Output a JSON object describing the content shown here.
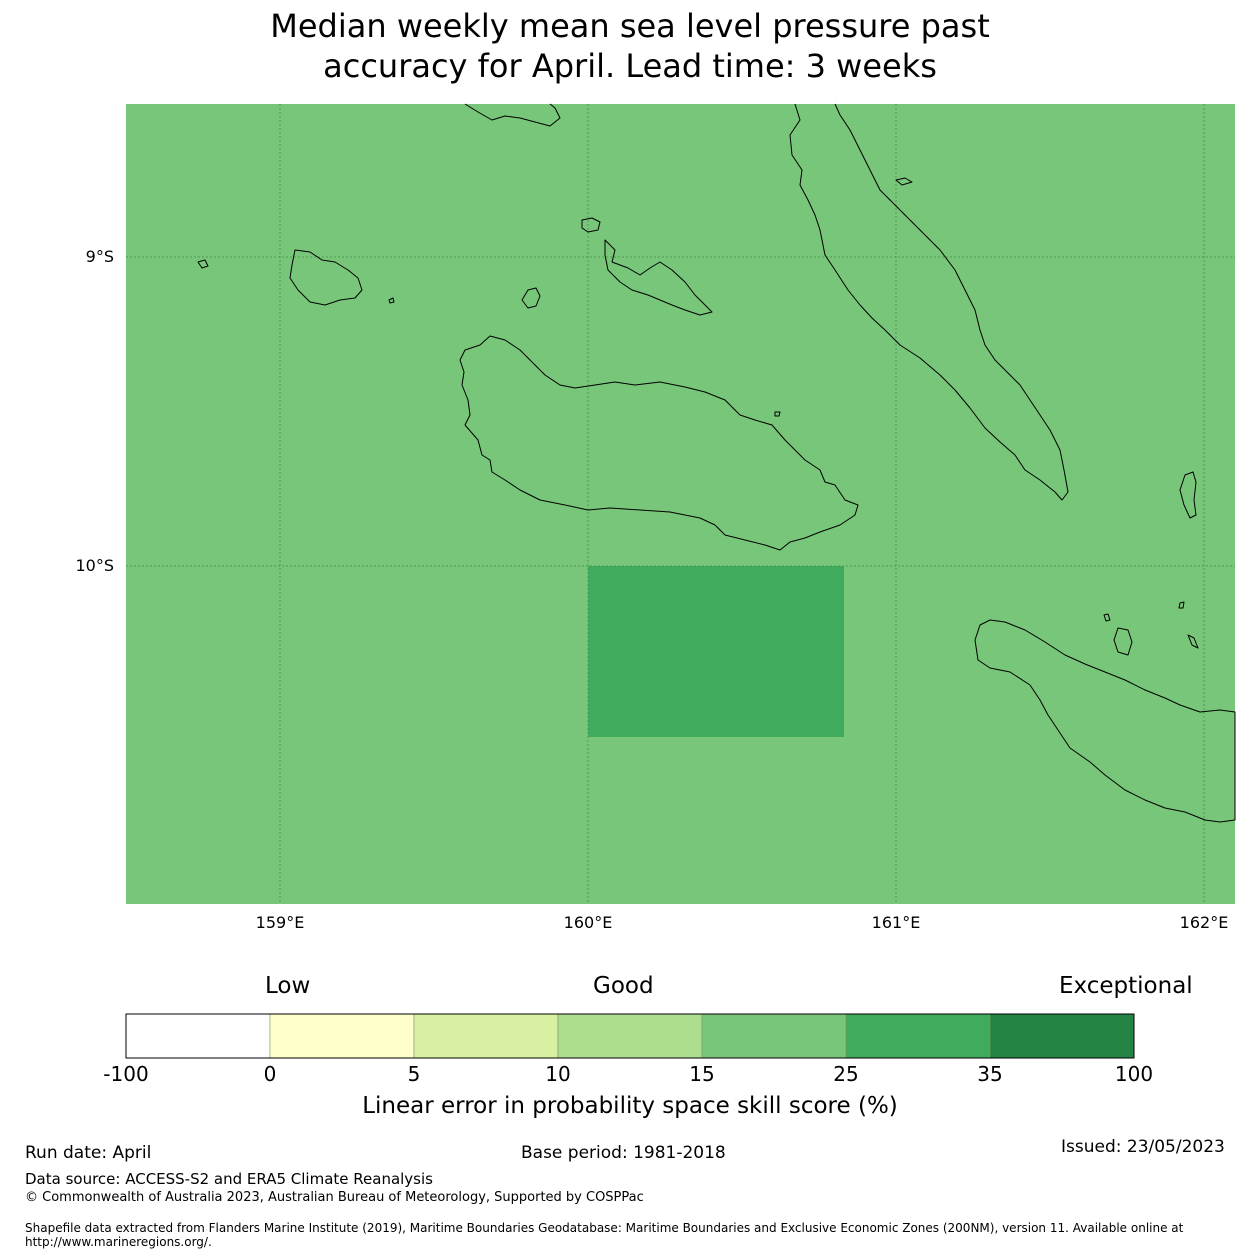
{
  "title_line1": "Median weekly mean sea level pressure past",
  "title_line2": "accuracy for April. Lead time: 3 weeks",
  "map": {
    "background_color": "#78c679",
    "highlight_color": "#41ab5d",
    "lat_labels": [
      "9°S",
      "10°S"
    ],
    "lon_labels": [
      "159°E",
      "160°E",
      "161°E",
      "162°E"
    ],
    "lon_range": [
      158.5,
      162.1
    ],
    "lat_range": [
      -8.5,
      -11.1
    ],
    "highlight_cell": {
      "lon_min": 160.0,
      "lon_max": 160.83,
      "lat_min": -10.56,
      "lat_max": -10.0,
      "category": "25–35"
    }
  },
  "colorbar": {
    "category_low": "Low",
    "category_good": "Good",
    "category_exceptional": "Exceptional",
    "ticks": [
      "-100",
      "0",
      "5",
      "10",
      "15",
      "25",
      "35",
      "100"
    ],
    "colors": [
      "#ffffff",
      "#ffffcc",
      "#d9f0a3",
      "#addd8e",
      "#78c679",
      "#41ab5d",
      "#238443"
    ],
    "label": "Linear error in probability space skill score (%)"
  },
  "footer": {
    "run_date": "Run date: April",
    "base_period": "Base period: 1981-2018",
    "issued": "Issued: 23/05/2023",
    "data_source": "Data source: ACCESS-S2 and ERA5 Climate Reanalysis",
    "copyright": "© Commonwealth of Australia 2023, Australian Bureau of Meteorology, Supported by COSPPac",
    "shapefile": "Shapefile data extracted from Flanders Marine Institute (2019), Maritime Boundaries Geodatabase: Maritime Boundaries and Exclusive Economic Zones (200NM), version 11. Available online at http://www.marineregions.org/."
  }
}
